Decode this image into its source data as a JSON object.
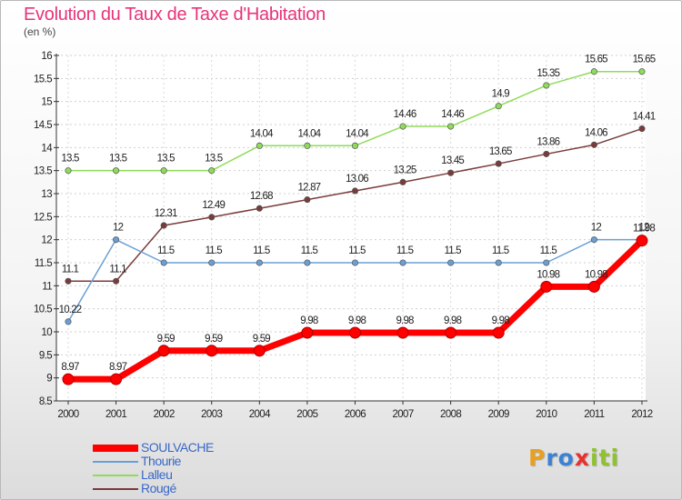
{
  "header": {
    "title": "Evolution du Taux de Taxe d'Habitation",
    "unit": "(en %)"
  },
  "chart_data": {
    "type": "line",
    "x": [
      "2000",
      "2001",
      "2002",
      "2003",
      "2004",
      "2005",
      "2006",
      "2007",
      "2008",
      "2009",
      "2010",
      "2011",
      "2012"
    ],
    "ylim": [
      8.5,
      16
    ],
    "yticks": [
      8.5,
      9,
      9.5,
      10,
      10.5,
      11,
      11.5,
      12,
      12.5,
      13,
      13.5,
      14,
      14.5,
      15,
      15.5,
      16
    ],
    "series": [
      {
        "name": "SOULVACHE",
        "color": "#ff0000",
        "labels": [
          "8.97",
          "8.97",
          "9.59",
          "9.59",
          "9.59",
          "9.98",
          "9.98",
          "9.98",
          "9.98",
          "9.98",
          "10.98",
          "10.98",
          "11.98"
        ],
        "values": [
          8.97,
          8.97,
          9.59,
          9.59,
          9.59,
          9.98,
          9.98,
          9.98,
          9.98,
          9.98,
          10.98,
          10.98,
          11.98
        ]
      },
      {
        "name": "Thourie",
        "color": "#6b9fd4",
        "labels": [
          "10.22",
          "12",
          "11.5",
          "11.5",
          "11.5",
          "11.5",
          "11.5",
          "11.5",
          "11.5",
          "11.5",
          "11.5",
          "12",
          "12"
        ],
        "values": [
          10.22,
          12,
          11.5,
          11.5,
          11.5,
          11.5,
          11.5,
          11.5,
          11.5,
          11.5,
          11.5,
          12,
          12
        ]
      },
      {
        "name": "Lalleu",
        "color": "#8fdc5a",
        "labels": [
          "13.5",
          "13.5",
          "13.5",
          "13.5",
          "14.04",
          "14.04",
          "14.04",
          "14.46",
          "14.46",
          "14.9",
          "15.35",
          "15.65",
          "15.65"
        ],
        "values": [
          13.5,
          13.5,
          13.5,
          13.5,
          14.04,
          14.04,
          14.04,
          14.46,
          14.46,
          14.9,
          15.35,
          15.65,
          15.65
        ]
      },
      {
        "name": "Rougé",
        "color": "#7a3b3b",
        "labels": [
          "11.1",
          "11.1",
          "12.31",
          "12.49",
          "12.68",
          "12.87",
          "13.06",
          "13.25",
          "13.45",
          "13.65",
          "13.86",
          "14.06",
          "14.41"
        ],
        "values": [
          11.1,
          11.1,
          12.31,
          12.49,
          12.68,
          12.87,
          13.06,
          13.25,
          13.45,
          13.65,
          13.86,
          14.06,
          14.41
        ]
      }
    ]
  },
  "logo": {
    "letters": [
      "P",
      "r",
      "o",
      "x",
      "i",
      "t",
      "i"
    ],
    "colors": [
      "#e8a020",
      "#3b82d6",
      "#3b82d6",
      "#e83030",
      "#8fc22e",
      "#8fc22e",
      "#8fc22e"
    ]
  }
}
